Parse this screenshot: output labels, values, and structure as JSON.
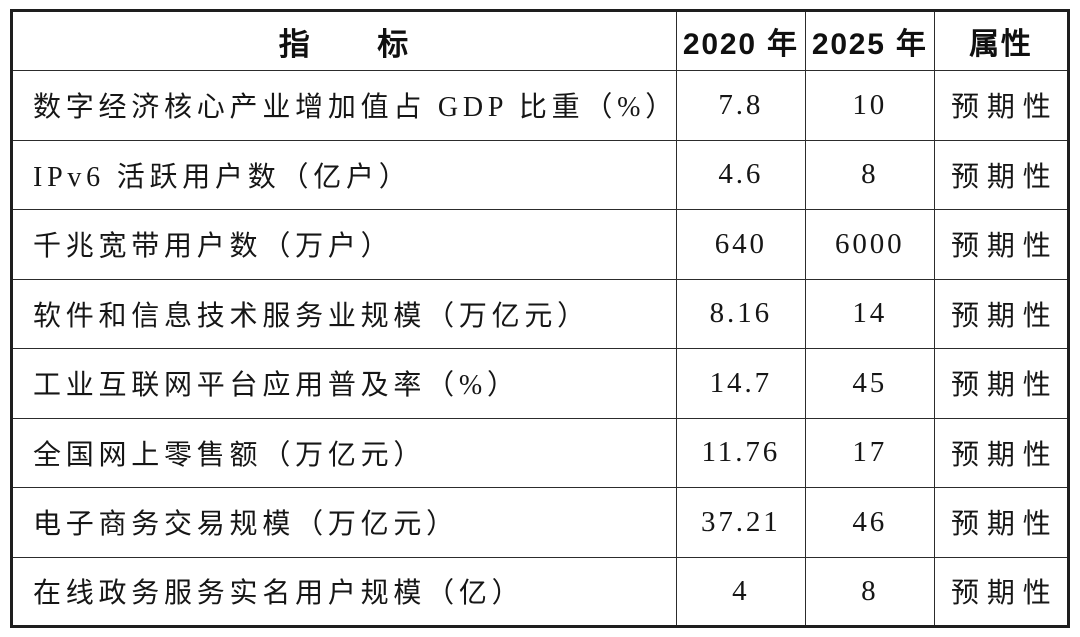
{
  "chart_data": {
    "type": "table",
    "columns": [
      "指　　标",
      "2020 年",
      "2025 年",
      "属性"
    ],
    "rows": [
      [
        "数字经济核心产业增加值占 GDP 比重（%）",
        "7.8",
        "10",
        "预期性"
      ],
      [
        "IPv6 活跃用户数（亿户）",
        "4.6",
        "8",
        "预期性"
      ],
      [
        "千兆宽带用户数（万户）",
        "640",
        "6000",
        "预期性"
      ],
      [
        "软件和信息技术服务业规模（万亿元）",
        "8.16",
        "14",
        "预期性"
      ],
      [
        "工业互联网平台应用普及率（%）",
        "14.7",
        "45",
        "预期性"
      ],
      [
        "全国网上零售额（万亿元）",
        "11.76",
        "17",
        "预期性"
      ],
      [
        "电子商务交易规模（万亿元）",
        "37.21",
        "46",
        "预期性"
      ],
      [
        "在线政务服务实名用户规模（亿）",
        "4",
        "8",
        "预期性"
      ]
    ],
    "text_color": "#161616",
    "border_color": "#1e1e1e",
    "background_color": "#ffffff",
    "grid": "on",
    "legend_position": "none"
  }
}
